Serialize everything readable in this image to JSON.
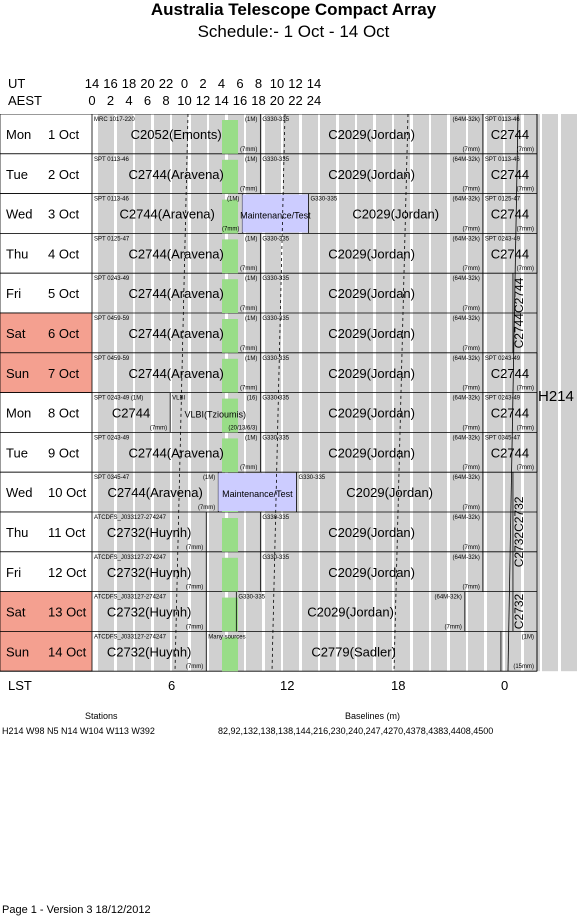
{
  "title": "Australia Telescope Compact Array",
  "subtitle": "Schedule:- 1  Oct - 14 Oct",
  "axis": {
    "ut_label": "UT",
    "aest_label": "AEST",
    "lst_label": "LST",
    "ut_ticks": [
      "14",
      "16",
      "18",
      "20",
      "22",
      "0",
      "2",
      "4",
      "6",
      "8",
      "10",
      "12",
      "14"
    ],
    "aest_ticks": [
      "0",
      "2",
      "4",
      "6",
      "8",
      "10",
      "12",
      "14",
      "16",
      "18",
      "20",
      "22",
      "24"
    ],
    "lst_ticks": [
      "6",
      "12",
      "18",
      "0"
    ]
  },
  "config": "H214",
  "days": [
    {
      "dow": "Mon",
      "date": "1",
      "month": "Oct",
      "weekend": false
    },
    {
      "dow": "Tue",
      "date": "2",
      "month": "Oct",
      "weekend": false
    },
    {
      "dow": "Wed",
      "date": "3",
      "month": "Oct",
      "weekend": false
    },
    {
      "dow": "Thu",
      "date": "4",
      "month": "Oct",
      "weekend": false
    },
    {
      "dow": "Fri",
      "date": "5",
      "month": "Oct",
      "weekend": false
    },
    {
      "dow": "Sat",
      "date": "6",
      "month": "Oct",
      "weekend": true
    },
    {
      "dow": "Sun",
      "date": "7",
      "month": "Oct",
      "weekend": true
    },
    {
      "dow": "Mon",
      "date": "8",
      "month": "Oct",
      "weekend": false
    },
    {
      "dow": "Tue",
      "date": "9",
      "month": "Oct",
      "weekend": false
    },
    {
      "dow": "Wed",
      "date": "10",
      "month": "Oct",
      "weekend": false
    },
    {
      "dow": "Thu",
      "date": "11",
      "month": "Oct",
      "weekend": false
    },
    {
      "dow": "Fri",
      "date": "12",
      "month": "Oct",
      "weekend": false
    },
    {
      "dow": "Sat",
      "date": "13",
      "month": "Oct",
      "weekend": true
    },
    {
      "dow": "Sun",
      "date": "14",
      "month": "Oct",
      "weekend": true
    }
  ],
  "rows": [
    [
      {
        "x0": 0,
        "x1": 14,
        "proj": "C2052(Emonts)",
        "src": "MRC 1017-220",
        "cfg": "(1M)",
        "mm": "(7mm)"
      },
      {
        "x0": 14,
        "x1": 32.5,
        "proj": "C2029(Jordan)",
        "src": "G330-335",
        "cfg": "(64M-32k)",
        "mm": "(7mm)"
      },
      {
        "x0": 32.5,
        "x1": 37,
        "proj": "C2744",
        "src": "SPT 0113-46",
        "cfg": "",
        "mm": "(7mm)"
      }
    ],
    [
      {
        "x0": 0,
        "x1": 14,
        "proj": "C2744(Aravena)",
        "src": "SPT 0113-46",
        "cfg": "(1M)",
        "mm": "(7mm)"
      },
      {
        "x0": 14,
        "x1": 32.5,
        "proj": "C2029(Jordan)",
        "src": "G330-335",
        "cfg": "(64M-32k)",
        "mm": "(7mm)"
      },
      {
        "x0": 32.5,
        "x1": 37,
        "proj": "C2744",
        "src": "SPT 0113-46",
        "cfg": "",
        "mm": "(7mm)"
      }
    ],
    [
      {
        "x0": 0,
        "x1": 12.5,
        "proj": "C2744(Aravena)",
        "src": "SPT 0113-46",
        "cfg": "(1M)",
        "mm": "(7mm)"
      },
      {
        "x0": 12.5,
        "x1": 18,
        "proj": "Maintenance/Test",
        "src": "",
        "cfg": "",
        "mm": ""
      },
      {
        "x0": 18,
        "x1": 32.5,
        "proj": "C2029(Jordan)",
        "src": "G330-335",
        "cfg": "(64M-32k)",
        "mm": "(7mm)"
      },
      {
        "x0": 32.5,
        "x1": 37,
        "proj": "C2744",
        "src": "SPT 0125-47",
        "cfg": "",
        "mm": "(7mm)"
      }
    ],
    [
      {
        "x0": 0,
        "x1": 14,
        "proj": "C2744(Aravena)",
        "src": "SPT 0125-47",
        "cfg": "(1M)",
        "mm": "(7mm)"
      },
      {
        "x0": 14,
        "x1": 32.5,
        "proj": "C2029(Jordan)",
        "src": "G330-335",
        "cfg": "(64M-32k)",
        "mm": "(7mm)"
      },
      {
        "x0": 32.5,
        "x1": 37,
        "proj": "C2744",
        "src": "SPT 0243-49",
        "cfg": "",
        "mm": "(7mm)"
      }
    ],
    [
      {
        "x0": 0,
        "x1": 14,
        "proj": "C2744(Aravena)",
        "src": "SPT 0243-49",
        "cfg": "(1M)",
        "mm": "(7mm)"
      },
      {
        "x0": 14,
        "x1": 32.5,
        "proj": "C2029(Jordan)",
        "src": "G330-335",
        "cfg": "(64M-32k)",
        "mm": "(7mm)"
      },
      {
        "x0": 32.5,
        "x1": 35,
        "proj": "",
        "src": "",
        "cfg": "",
        "mm": ""
      }
    ],
    [
      {
        "x0": 0,
        "x1": 14,
        "proj": "C2744(Aravena)",
        "src": "SPT 0459-59",
        "cfg": "(1M)",
        "mm": "(7mm)"
      },
      {
        "x0": 14,
        "x1": 32.5,
        "proj": "C2029(Jordan)",
        "src": "G330-335",
        "cfg": "(64M-32k)",
        "mm": "(7mm)"
      },
      {
        "x0": 32.5,
        "x1": 35,
        "proj": "",
        "src": "",
        "cfg": "",
        "mm": ""
      }
    ],
    [
      {
        "x0": 0,
        "x1": 14,
        "proj": "C2744(Aravena)",
        "src": "SPT 0459-59",
        "cfg": "(1M)",
        "mm": "(7mm)"
      },
      {
        "x0": 14,
        "x1": 32.5,
        "proj": "C2029(Jordan)",
        "src": "G330-335",
        "cfg": "(64M-32k)",
        "mm": "(7mm)"
      },
      {
        "x0": 32.5,
        "x1": 37,
        "proj": "C2744",
        "src": "SPT 0243-49",
        "cfg": "",
        "mm": "(7mm)"
      }
    ],
    [
      {
        "x0": 0,
        "x1": 6.5,
        "proj": "C2744",
        "src": "SPT 0243-49 (1M)",
        "cfg": "",
        "mm": "(7mm)"
      },
      {
        "x0": 6.5,
        "x1": 14,
        "proj": "VLBI(Tzioumis)",
        "src": "VLBI",
        "cfg": "(16)",
        "mm": "(20/13/6/3)"
      },
      {
        "x0": 14,
        "x1": 32.5,
        "proj": "C2029(Jordan)",
        "src": "G330-335",
        "cfg": "(64M-32k)",
        "mm": "(7mm)"
      },
      {
        "x0": 32.5,
        "x1": 37,
        "proj": "C2744",
        "src": "SPT 0243-49",
        "cfg": "",
        "mm": "(7mm)"
      }
    ],
    [
      {
        "x0": 0,
        "x1": 14,
        "proj": "C2744(Aravena)",
        "src": "SPT 0243-49",
        "cfg": "(1M)",
        "mm": "(7mm)"
      },
      {
        "x0": 14,
        "x1": 32.5,
        "proj": "C2029(Jordan)",
        "src": "G330-335",
        "cfg": "(64M-32k)",
        "mm": "(7mm)"
      },
      {
        "x0": 32.5,
        "x1": 37,
        "proj": "C2744",
        "src": "SPT 0345-47",
        "cfg": "",
        "mm": "(7mm)"
      }
    ],
    [
      {
        "x0": 0,
        "x1": 10.5,
        "proj": "C2744(Aravena)",
        "src": "SPT 0345-47",
        "cfg": "(1M)",
        "mm": "(7mm)"
      },
      {
        "x0": 10.5,
        "x1": 17,
        "proj": "Maintenance/Test",
        "src": "",
        "cfg": "",
        "mm": ""
      },
      {
        "x0": 17,
        "x1": 32.5,
        "proj": "C2029(Jordan)",
        "src": "G330-335",
        "cfg": "(64M-32k)",
        "mm": "(7mm)"
      },
      {
        "x0": 32.5,
        "x1": 35,
        "proj": "",
        "src": "",
        "cfg": "",
        "mm": ""
      }
    ],
    [
      {
        "x0": 0,
        "x1": 9.5,
        "proj": "C2732(Huynh)",
        "src": "ATCDFS_J033127-274247",
        "cfg": "",
        "mm": "(7mm)"
      },
      {
        "x0": 9.5,
        "x1": 14,
        "proj": "",
        "src": "",
        "cfg": "",
        "mm": ""
      },
      {
        "x0": 14,
        "x1": 32.5,
        "proj": "C2029(Jordan)",
        "src": "G330-335",
        "cfg": "(64M-32k)",
        "mm": "(7mm)"
      },
      {
        "x0": 32.5,
        "x1": 35,
        "proj": "",
        "src": "",
        "cfg": "",
        "mm": ""
      }
    ],
    [
      {
        "x0": 0,
        "x1": 9.5,
        "proj": "C2732(Huynh)",
        "src": "ATCDFS_J033127-274247",
        "cfg": "",
        "mm": "(7mm)"
      },
      {
        "x0": 9.5,
        "x1": 14,
        "proj": "",
        "src": "",
        "cfg": "",
        "mm": ""
      },
      {
        "x0": 14,
        "x1": 32.5,
        "proj": "C2029(Jordan)",
        "src": "G330-335",
        "cfg": "(64M-32k)",
        "mm": "(7mm)"
      },
      {
        "x0": 32.5,
        "x1": 35,
        "proj": "",
        "src": "",
        "cfg": "",
        "mm": ""
      }
    ],
    [
      {
        "x0": 0,
        "x1": 9.5,
        "proj": "C2732(Huynh)",
        "src": "ATCDFS_J033127-274247",
        "cfg": "",
        "mm": "(7mm)"
      },
      {
        "x0": 9.5,
        "x1": 12,
        "proj": "",
        "src": "",
        "cfg": "",
        "mm": ""
      },
      {
        "x0": 12,
        "x1": 31,
        "proj": "C2029(Jordan)",
        "src": "G330-335",
        "cfg": "(64M-32k)",
        "mm": "(7mm)"
      },
      {
        "x0": 31,
        "x1": 35,
        "proj": "",
        "src": "",
        "cfg": "",
        "mm": ""
      }
    ],
    [
      {
        "x0": 0,
        "x1": 9.5,
        "proj": "C2732(Huynh)",
        "src": "ATCDFS_J033127-274247",
        "cfg": "",
        "mm": "(7mm)"
      },
      {
        "x0": 9.5,
        "x1": 34,
        "proj": "C2779(Sadler)",
        "src": "Many sources",
        "cfg": "",
        "mm": ""
      },
      {
        "x0": 34,
        "x1": 37,
        "proj": "",
        "src": "",
        "cfg": "(1M)",
        "mm": "(15mm)"
      }
    ]
  ],
  "vertical_labels": [
    {
      "text": "C2744C2744",
      "row_start": 4,
      "row_end": 6
    },
    {
      "text": "C2732C2732",
      "row_start": 9,
      "row_end": 12
    },
    {
      "text": "C2732",
      "row_start": 12,
      "row_end": 13
    }
  ],
  "stations": {
    "label": "Stations",
    "value": "H214   W98 N5 N14  W104  W113 W392"
  },
  "baselines": {
    "label": "Baselines (m)",
    "value": "82,92,132,138,138,144,216,230,240,247,4270,4378,4383,4408,4500"
  },
  "footer": "Page 1 - Version 3  18/12/2012"
}
